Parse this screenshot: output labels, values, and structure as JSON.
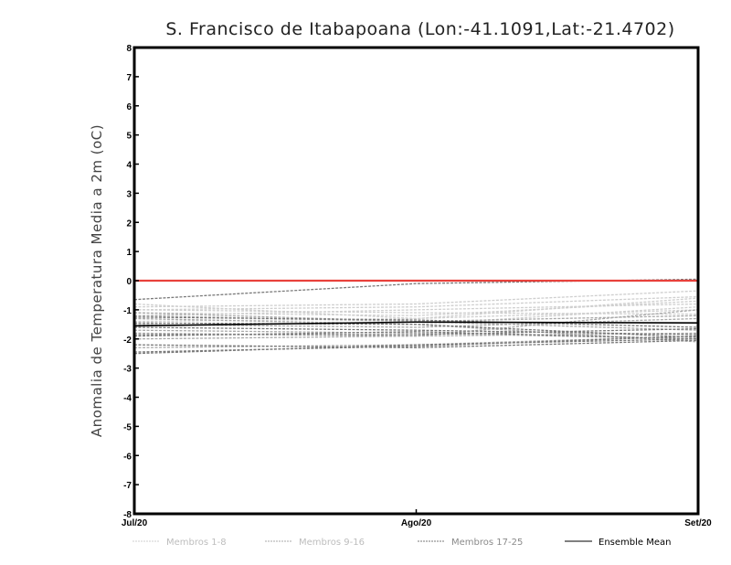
{
  "chart_data": {
    "type": "line",
    "title": "S. Francisco de Itabapoana (Lon:-41.1091,Lat:-21.4702)",
    "xlabel": "",
    "ylabel": "Anomalia de Temperatura Media a 2m (oC)",
    "categories": [
      "Jul/20",
      "Ago/20",
      "Set/20"
    ],
    "ylim": [
      -8,
      8
    ],
    "yticks": [
      "8",
      "7",
      "6",
      "5",
      "4",
      "3",
      "2",
      "1",
      "0",
      "-1",
      "-2",
      "-3",
      "-4",
      "-5",
      "-6",
      "-7",
      "-8"
    ],
    "reference_line": {
      "value": 0,
      "color": "#e8413c"
    },
    "legend_position": "bottom",
    "groups": [
      {
        "name": "Membros 1-8",
        "color": "#cfcfcf",
        "style": "dashed",
        "series": [
          [
            -0.9,
            -0.8,
            -0.35
          ],
          [
            -1.0,
            -0.9,
            -0.55
          ],
          [
            -1.1,
            -1.2,
            -0.7
          ],
          [
            -1.2,
            -1.0,
            -0.8
          ],
          [
            -0.8,
            -1.3,
            -1.0
          ],
          [
            -1.3,
            -1.5,
            -0.9
          ],
          [
            -1.0,
            -1.1,
            -1.15
          ],
          [
            -1.4,
            -1.3,
            -0.6
          ]
        ]
      },
      {
        "name": "Membros 9-16",
        "color": "#a9a9a9",
        "style": "dashed",
        "series": [
          [
            -1.5,
            -1.6,
            -1.3
          ],
          [
            -1.7,
            -1.8,
            -2.0
          ],
          [
            -1.1,
            -1.4,
            -1.2
          ],
          [
            -2.0,
            -1.9,
            -1.8
          ],
          [
            -1.3,
            -1.5,
            -2.1
          ],
          [
            -1.8,
            -1.9,
            -1.0
          ],
          [
            -2.3,
            -2.2,
            -1.9
          ],
          [
            -1.2,
            -1.4,
            -1.7
          ]
        ]
      },
      {
        "name": "Membros 17-25",
        "color": "#7a7a7a",
        "style": "dashed",
        "series": [
          [
            -0.65,
            -0.1,
            0.05
          ],
          [
            -2.5,
            -2.2,
            -2.0
          ],
          [
            -2.45,
            -2.25,
            -1.9
          ],
          [
            -1.9,
            -1.75,
            -2.0
          ],
          [
            -1.25,
            -1.35,
            -1.6
          ],
          [
            -2.2,
            -2.3,
            -2.05
          ],
          [
            -1.6,
            -1.7,
            -1.85
          ],
          [
            -1.85,
            -1.85,
            -1.65
          ],
          [
            -1.45,
            -1.5,
            -1.95
          ]
        ]
      },
      {
        "name": "Ensemble Mean",
        "color": "#000000",
        "style": "solid",
        "series": [
          [
            -1.55,
            -1.42,
            -1.45
          ]
        ]
      }
    ]
  }
}
